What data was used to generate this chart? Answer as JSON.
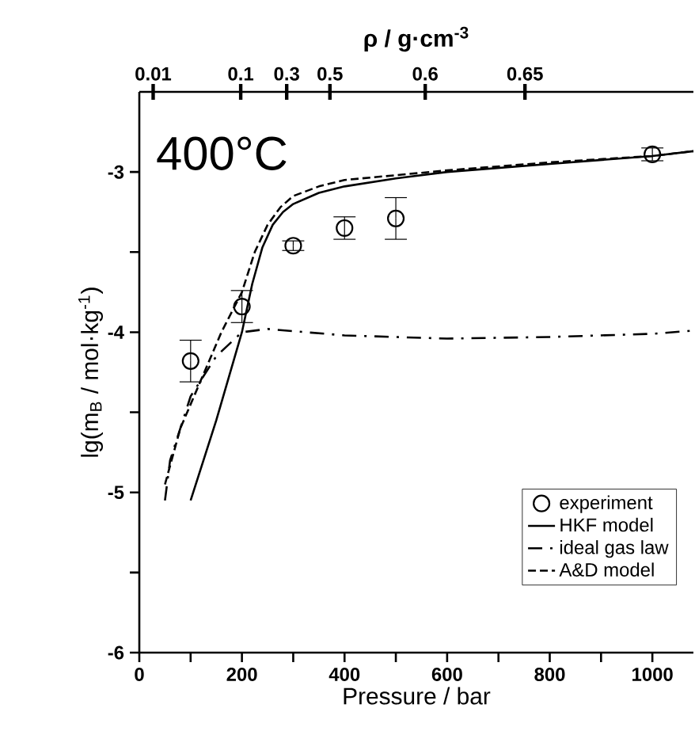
{
  "chart_data": {
    "type": "line",
    "annotations": [
      "400°C",
      "0.01",
      "0.1",
      "0.3",
      "0.5",
      "0.6",
      "0.65"
    ],
    "xlabel": "Pressure / bar",
    "ylabel": "lg(m$_{B}$ / mol·kg$^{-1}$)",
    "x2label": "ρ / g·cm$^{-3}$",
    "xlim": [
      0,
      1080
    ],
    "ylim": [
      -6,
      -2.5
    ],
    "xticks": [
      0,
      {
        "value": 100,
        "label": null
      },
      200,
      {
        "value": 300,
        "label": null
      },
      400,
      {
        "value": 500,
        "label": null
      },
      600,
      {
        "value": 700,
        "label": null
      },
      800,
      {
        "value": 900,
        "label": null
      },
      1000
    ],
    "yticks": [
      -6,
      {
        "value": -5.5,
        "label": null
      },
      -5,
      {
        "value": -4.5,
        "label": null
      },
      -4,
      {
        "value": -3.5,
        "label": null
      },
      -3
    ],
    "legend": "bottom right",
    "series": [
      {
        "name": "experiment",
        "type": "scatter",
        "marker": "circle",
        "color": "#000000",
        "x": [
          100,
          200,
          300,
          400,
          500,
          1000
        ],
        "values": [
          -4.18,
          -3.84,
          -3.46,
          -3.35,
          -3.29,
          -2.89
        ],
        "errors": [
          0.13,
          0.1,
          0.03,
          0.07,
          0.13,
          0.04
        ]
      },
      {
        "name": "HKF model",
        "line_style": "solid",
        "color": "#000000",
        "x": [
          100,
          150,
          200,
          220,
          240,
          260,
          280,
          300,
          350,
          400,
          500,
          600,
          800,
          1000,
          1080
        ],
        "values": [
          -5.05,
          -4.55,
          -4.0,
          -3.7,
          -3.47,
          -3.33,
          -3.25,
          -3.2,
          -3.13,
          -3.09,
          -3.04,
          -3.0,
          -2.95,
          -2.9,
          -2.87
        ]
      },
      {
        "name": "ideal gas law",
        "line_style": "dashdot",
        "color": "#000000",
        "x": [
          50,
          60,
          100,
          150,
          200,
          250,
          400,
          600,
          800,
          1000,
          1080
        ],
        "values": [
          -5.05,
          -4.8,
          -4.4,
          -4.15,
          -4.0,
          -3.98,
          -4.02,
          -4.04,
          -4.03,
          -4.01,
          -3.99
        ]
      },
      {
        "name": "A&D model",
        "line_style": "dashed",
        "color": "#000000",
        "x": [
          50,
          80,
          120,
          160,
          200,
          225,
          250,
          275,
          300,
          350,
          400,
          600,
          800,
          1000,
          1080
        ],
        "values": [
          -4.95,
          -4.6,
          -4.3,
          -4.0,
          -3.75,
          -3.5,
          -3.33,
          -3.22,
          -3.15,
          -3.09,
          -3.05,
          -2.99,
          -2.94,
          -2.9,
          -2.87
        ]
      }
    ]
  }
}
